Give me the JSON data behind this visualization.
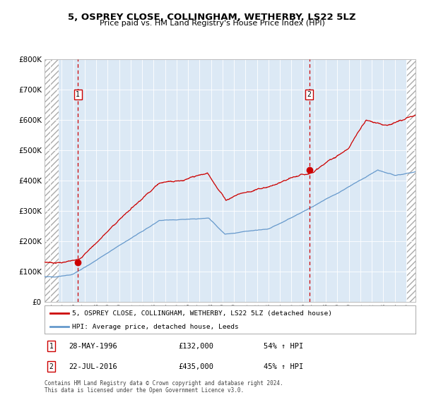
{
  "title": "5, OSPREY CLOSE, COLLINGHAM, WETHERBY, LS22 5LZ",
  "subtitle": "Price paid vs. HM Land Registry's House Price Index (HPI)",
  "legend_line1": "5, OSPREY CLOSE, COLLINGHAM, WETHERBY, LS22 5LZ (detached house)",
  "legend_line2": "HPI: Average price, detached house, Leeds",
  "annotation1_date": "28-MAY-1996",
  "annotation1_price": "£132,000",
  "annotation1_hpi": "54% ↑ HPI",
  "annotation2_date": "22-JUL-2016",
  "annotation2_price": "£435,000",
  "annotation2_hpi": "45% ↑ HPI",
  "footer": "Contains HM Land Registry data © Crown copyright and database right 2024.\nThis data is licensed under the Open Government Licence v3.0.",
  "red_color": "#cc0000",
  "blue_color": "#6699cc",
  "bg_color": "#dce9f5",
  "grid_color": "#ffffff",
  "ylim": [
    0,
    800000
  ],
  "xlim_start": 1993.5,
  "xlim_end": 2025.8,
  "purchase1_x": 1996.4,
  "purchase1_y": 132000,
  "purchase2_x": 2016.55,
  "purchase2_y": 435000,
  "hatch_left_end": 1994.75,
  "hatch_right_start": 2025.0
}
